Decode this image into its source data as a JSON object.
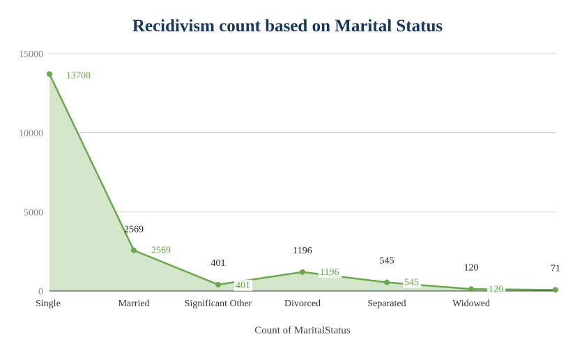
{
  "chart_data": {
    "type": "area",
    "title": "Recidivism count based on Marital Status",
    "xlabel": "Count of MaritalStatus",
    "ylabel": "",
    "categories": [
      "Single",
      "Married",
      "Significant Other",
      "Divorced",
      "Separated",
      "Widowed",
      ""
    ],
    "values": [
      13708,
      2569,
      401,
      1196,
      545,
      120,
      71
    ],
    "ylim": [
      0,
      15000
    ],
    "yticks": [
      0,
      5000,
      10000,
      15000
    ],
    "grid": true,
    "legend": "none",
    "colors": {
      "line": "#6aa84f",
      "fill": "#d3e6c9",
      "title": "#17375e"
    }
  }
}
